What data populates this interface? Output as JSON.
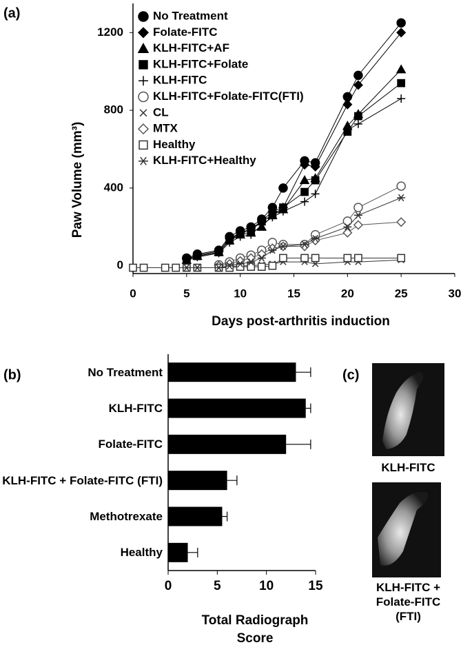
{
  "chart_data": [
    {
      "type": "line",
      "panel_label": "(a)",
      "ylabel": "Paw Volume (mm³)",
      "xlabel": "Days post-arthritis induction",
      "xlim": [
        0,
        30
      ],
      "xticks": [
        0,
        5,
        10,
        15,
        20,
        25,
        30
      ],
      "ylim": [
        -40,
        1350
      ],
      "yticks": [
        0,
        400,
        800,
        1200
      ],
      "legend": "upper left",
      "x": [
        0,
        1,
        3,
        4,
        5,
        6,
        8,
        9,
        10,
        11,
        12,
        13,
        14,
        16,
        17,
        20,
        21,
        25
      ],
      "series": [
        {
          "name": "No Treatment",
          "color": "#000000",
          "marker": "circle",
          "filled": true,
          "values": [
            null,
            null,
            null,
            null,
            40,
            60,
            80,
            150,
            180,
            200,
            240,
            300,
            400,
            540,
            530,
            870,
            980,
            1250
          ]
        },
        {
          "name": "Folate-FITC",
          "color": "#000000",
          "marker": "diamond",
          "filled": true,
          "values": [
            null,
            null,
            null,
            null,
            35,
            55,
            75,
            140,
            170,
            190,
            230,
            280,
            300,
            520,
            510,
            830,
            930,
            1200
          ]
        },
        {
          "name": "KLH-FITC+AF",
          "color": "#000000",
          "marker": "triangle",
          "filled": true,
          "values": [
            null,
            null,
            null,
            null,
            30,
            50,
            70,
            130,
            160,
            170,
            200,
            260,
            290,
            440,
            450,
            720,
            780,
            1010
          ]
        },
        {
          "name": "KLH-FITC+Folate",
          "color": "#000000",
          "marker": "square",
          "filled": true,
          "values": [
            null,
            null,
            null,
            null,
            30,
            50,
            70,
            130,
            170,
            180,
            230,
            260,
            300,
            380,
            440,
            690,
            770,
            940
          ]
        },
        {
          "name": "KLH-FITC",
          "color": "#000000",
          "marker": "plus",
          "filled": false,
          "values": [
            null,
            null,
            null,
            null,
            30,
            45,
            65,
            120,
            150,
            160,
            210,
            250,
            280,
            330,
            370,
            700,
            730,
            860
          ]
        },
        {
          "name": "KLH-FITC+Folate-FITC(FTI)",
          "color": "#555555",
          "marker": "circle",
          "filled": false,
          "values": [
            null,
            null,
            null,
            null,
            null,
            null,
            5,
            20,
            40,
            55,
            80,
            120,
            110,
            110,
            160,
            230,
            300,
            410
          ]
        },
        {
          "name": "CL",
          "color": "#333333",
          "marker": "x",
          "filled": false,
          "values": [
            -10,
            -10,
            -10,
            -10,
            -10,
            -10,
            -10,
            -5,
            0,
            0,
            5,
            10,
            20,
            20,
            10,
            20,
            20,
            30
          ]
        },
        {
          "name": "MTX",
          "color": "#555555",
          "marker": "diamond",
          "filled": false,
          "values": [
            null,
            null,
            null,
            null,
            null,
            null,
            0,
            10,
            25,
            40,
            60,
            90,
            100,
            100,
            130,
            170,
            210,
            225
          ]
        },
        {
          "name": "Healthy",
          "color": "#333333",
          "marker": "square",
          "filled": false,
          "values": [
            -10,
            -10,
            -10,
            -10,
            -10,
            -10,
            -10,
            -10,
            -5,
            -5,
            -5,
            0,
            40,
            40,
            40,
            40,
            40,
            40
          ]
        },
        {
          "name": "KLH-FITC+Healthy",
          "color": "#333333",
          "marker": "asterisk",
          "filled": false,
          "values": [
            null,
            null,
            null,
            null,
            -10,
            -10,
            -10,
            0,
            10,
            20,
            40,
            80,
            100,
            110,
            140,
            200,
            260,
            350
          ]
        }
      ]
    },
    {
      "type": "hbar",
      "panel_label": "(b)",
      "xlabel": "Total Radiograph Score",
      "color": "#000000",
      "categories": [
        "No Treatment",
        "KLH-FITC",
        "Folate-FITC",
        "KLH-FITC + Folate-FITC (FTI)",
        "Methotrexate",
        "Healthy"
      ],
      "values": [
        13,
        14,
        12,
        6,
        5.5,
        2
      ],
      "errors": [
        1.5,
        0.5,
        2.5,
        1,
        0.5,
        1
      ],
      "xlim": [
        0,
        15
      ],
      "xticks": [
        0,
        5,
        10,
        15
      ]
    }
  ],
  "panel_c": {
    "label": "(c)",
    "captions": [
      "KLH-FITC",
      "KLH-FITC + Folate-FITC (FTI)"
    ]
  }
}
